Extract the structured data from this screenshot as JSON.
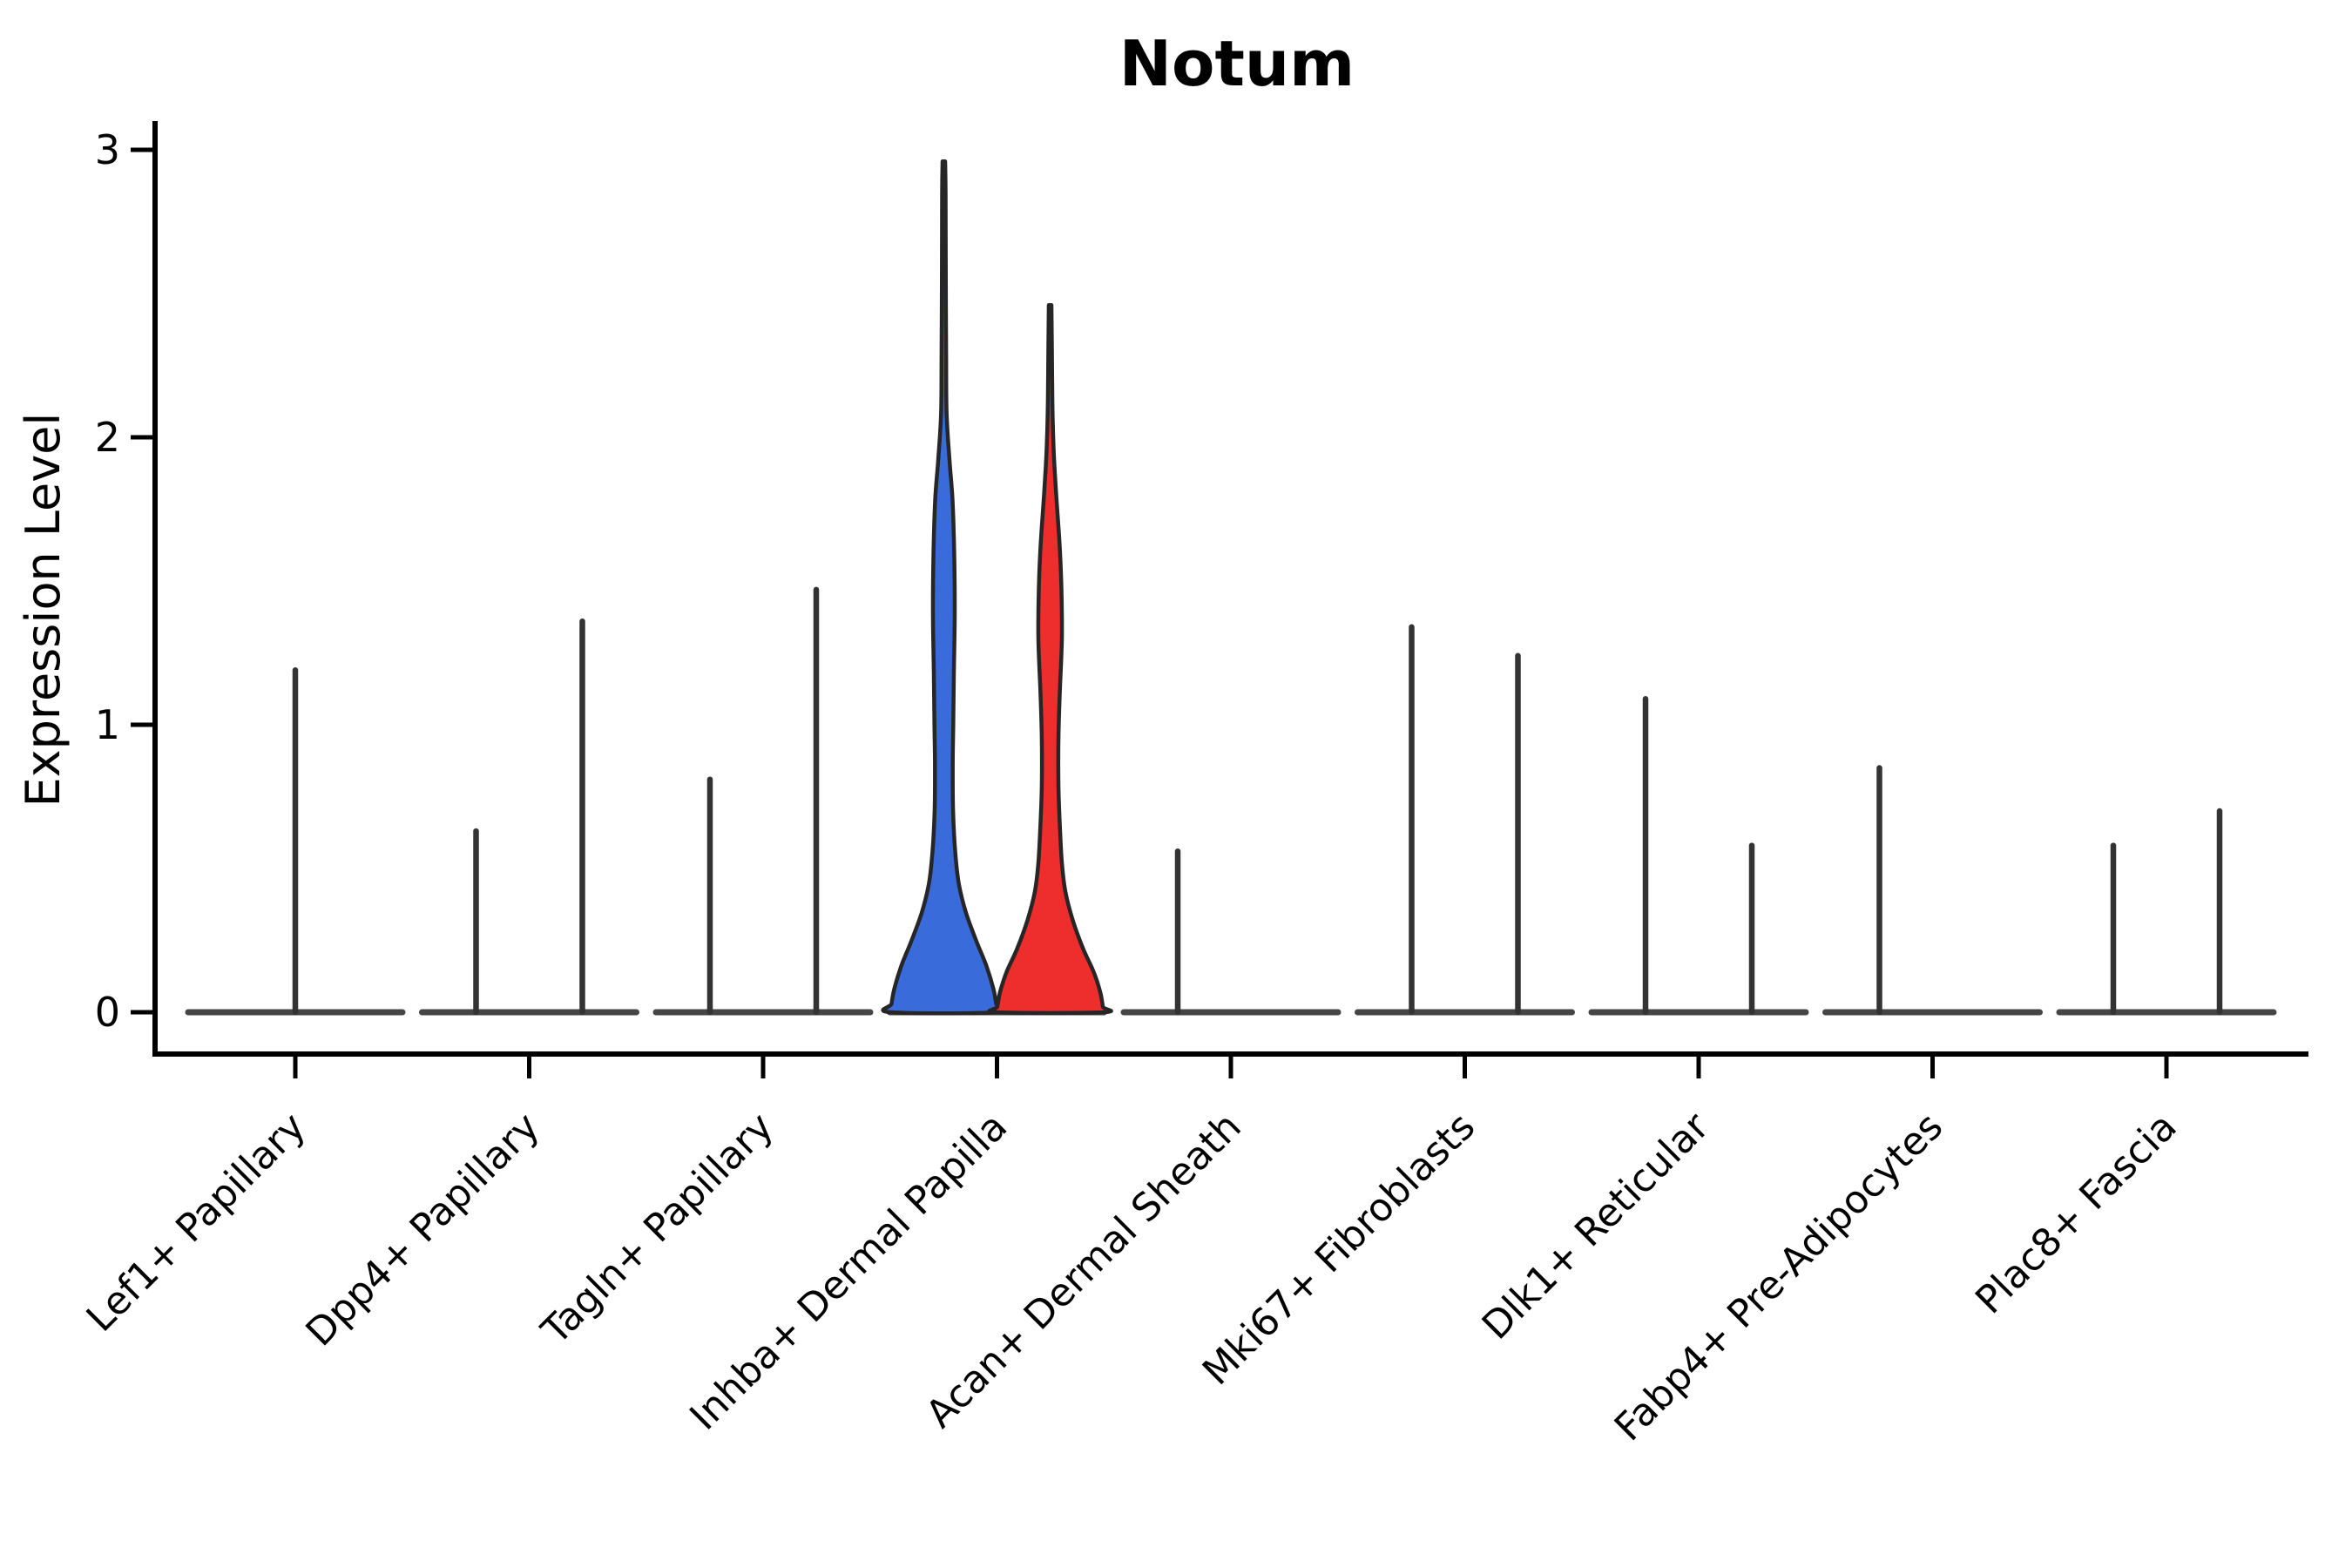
{
  "chart_data": {
    "type": "violin",
    "title": "Notum",
    "xlabel": "",
    "ylabel": "Expression Level",
    "ylim": [
      -0.14,
      3.24
    ],
    "yticks": [
      "0",
      "1",
      "2",
      "3"
    ],
    "grid": "off",
    "legend": "none",
    "split_groups": 2,
    "colors": {
      "group1_fill": "#3A6BDB",
      "group2_fill": "#EE2D2D",
      "violin_outline": "#262626",
      "spike": "#333333",
      "baseline": "#454545",
      "axis": "#000000",
      "title": "#000000",
      "background": "#ffffff"
    },
    "categories": [
      {
        "label": "Lef1+ Papillary",
        "violins": [
          {
            "type": "spike",
            "pos": "center",
            "max": 1.19
          }
        ]
      },
      {
        "label": "Dpp4+ Papillary",
        "violins": [
          {
            "type": "spike",
            "pos": "left",
            "max": 0.63
          },
          {
            "type": "spike",
            "pos": "right",
            "max": 1.36
          }
        ]
      },
      {
        "label": "Tagln+ Papillary",
        "violins": [
          {
            "type": "spike",
            "pos": "left",
            "max": 0.81
          },
          {
            "type": "spike",
            "pos": "right",
            "max": 1.47
          }
        ]
      },
      {
        "label": "Inhba+ Dermal Papilla",
        "violins": [
          {
            "type": "violin",
            "pos": "left",
            "group": 1,
            "max": 2.96,
            "profile": [
              [
                2.96,
                1.5
              ],
              [
                2.85,
                2.0
              ],
              [
                2.6,
                2.2
              ],
              [
                2.3,
                2.6
              ],
              [
                2.08,
                3.2
              ],
              [
                1.92,
                6.5
              ],
              [
                1.78,
                10.0
              ],
              [
                1.58,
                12.0
              ],
              [
                1.38,
                12.5
              ],
              [
                1.18,
                11.5
              ],
              [
                1.0,
                10.8
              ],
              [
                0.86,
                10.2
              ],
              [
                0.7,
                10.6
              ],
              [
                0.56,
                13.0
              ],
              [
                0.45,
                17.0
              ],
              [
                0.35,
                25.0
              ],
              [
                0.25,
                37.0
              ],
              [
                0.16,
                49.0
              ],
              [
                0.08,
                57.0
              ],
              [
                0.03,
                60.0
              ],
              [
                0.0,
                61.0
              ]
            ]
          },
          {
            "type": "violin",
            "pos": "right",
            "group": 2,
            "max": 2.46,
            "profile": [
              [
                2.46,
                1.5
              ],
              [
                2.32,
                2.0
              ],
              [
                2.12,
                2.6
              ],
              [
                1.96,
                4.0
              ],
              [
                1.8,
                7.0
              ],
              [
                1.62,
                11.0
              ],
              [
                1.47,
                13.0
              ],
              [
                1.3,
                13.5
              ],
              [
                1.12,
                11.2
              ],
              [
                0.96,
                9.6
              ],
              [
                0.8,
                9.5
              ],
              [
                0.66,
                11.0
              ],
              [
                0.52,
                13.5
              ],
              [
                0.42,
                17.5
              ],
              [
                0.32,
                26.0
              ],
              [
                0.22,
                38.0
              ],
              [
                0.14,
                50.0
              ],
              [
                0.07,
                57.5
              ],
              [
                0.02,
                60.5
              ],
              [
                0.0,
                61.0
              ]
            ]
          }
        ]
      },
      {
        "label": "Acan+ Dermal Sheath",
        "violins": [
          {
            "type": "spike",
            "pos": "left",
            "max": 0.56
          }
        ]
      },
      {
        "label": "Mki67+ Fibroblasts",
        "violins": [
          {
            "type": "spike",
            "pos": "left",
            "max": 1.34
          },
          {
            "type": "spike",
            "pos": "right",
            "max": 1.24
          }
        ]
      },
      {
        "label": "Dlk1+ Reticular",
        "violins": [
          {
            "type": "spike",
            "pos": "left",
            "max": 1.09
          },
          {
            "type": "spike",
            "pos": "right",
            "max": 0.58
          }
        ]
      },
      {
        "label": "Fabp4+ Pre-Adipocytes",
        "violins": [
          {
            "type": "spike",
            "pos": "left",
            "max": 0.85
          }
        ]
      },
      {
        "label": "Plac8+ Fascia",
        "violins": [
          {
            "type": "spike",
            "pos": "left",
            "max": 0.58
          },
          {
            "type": "spike",
            "pos": "right",
            "max": 0.7
          }
        ]
      }
    ]
  }
}
